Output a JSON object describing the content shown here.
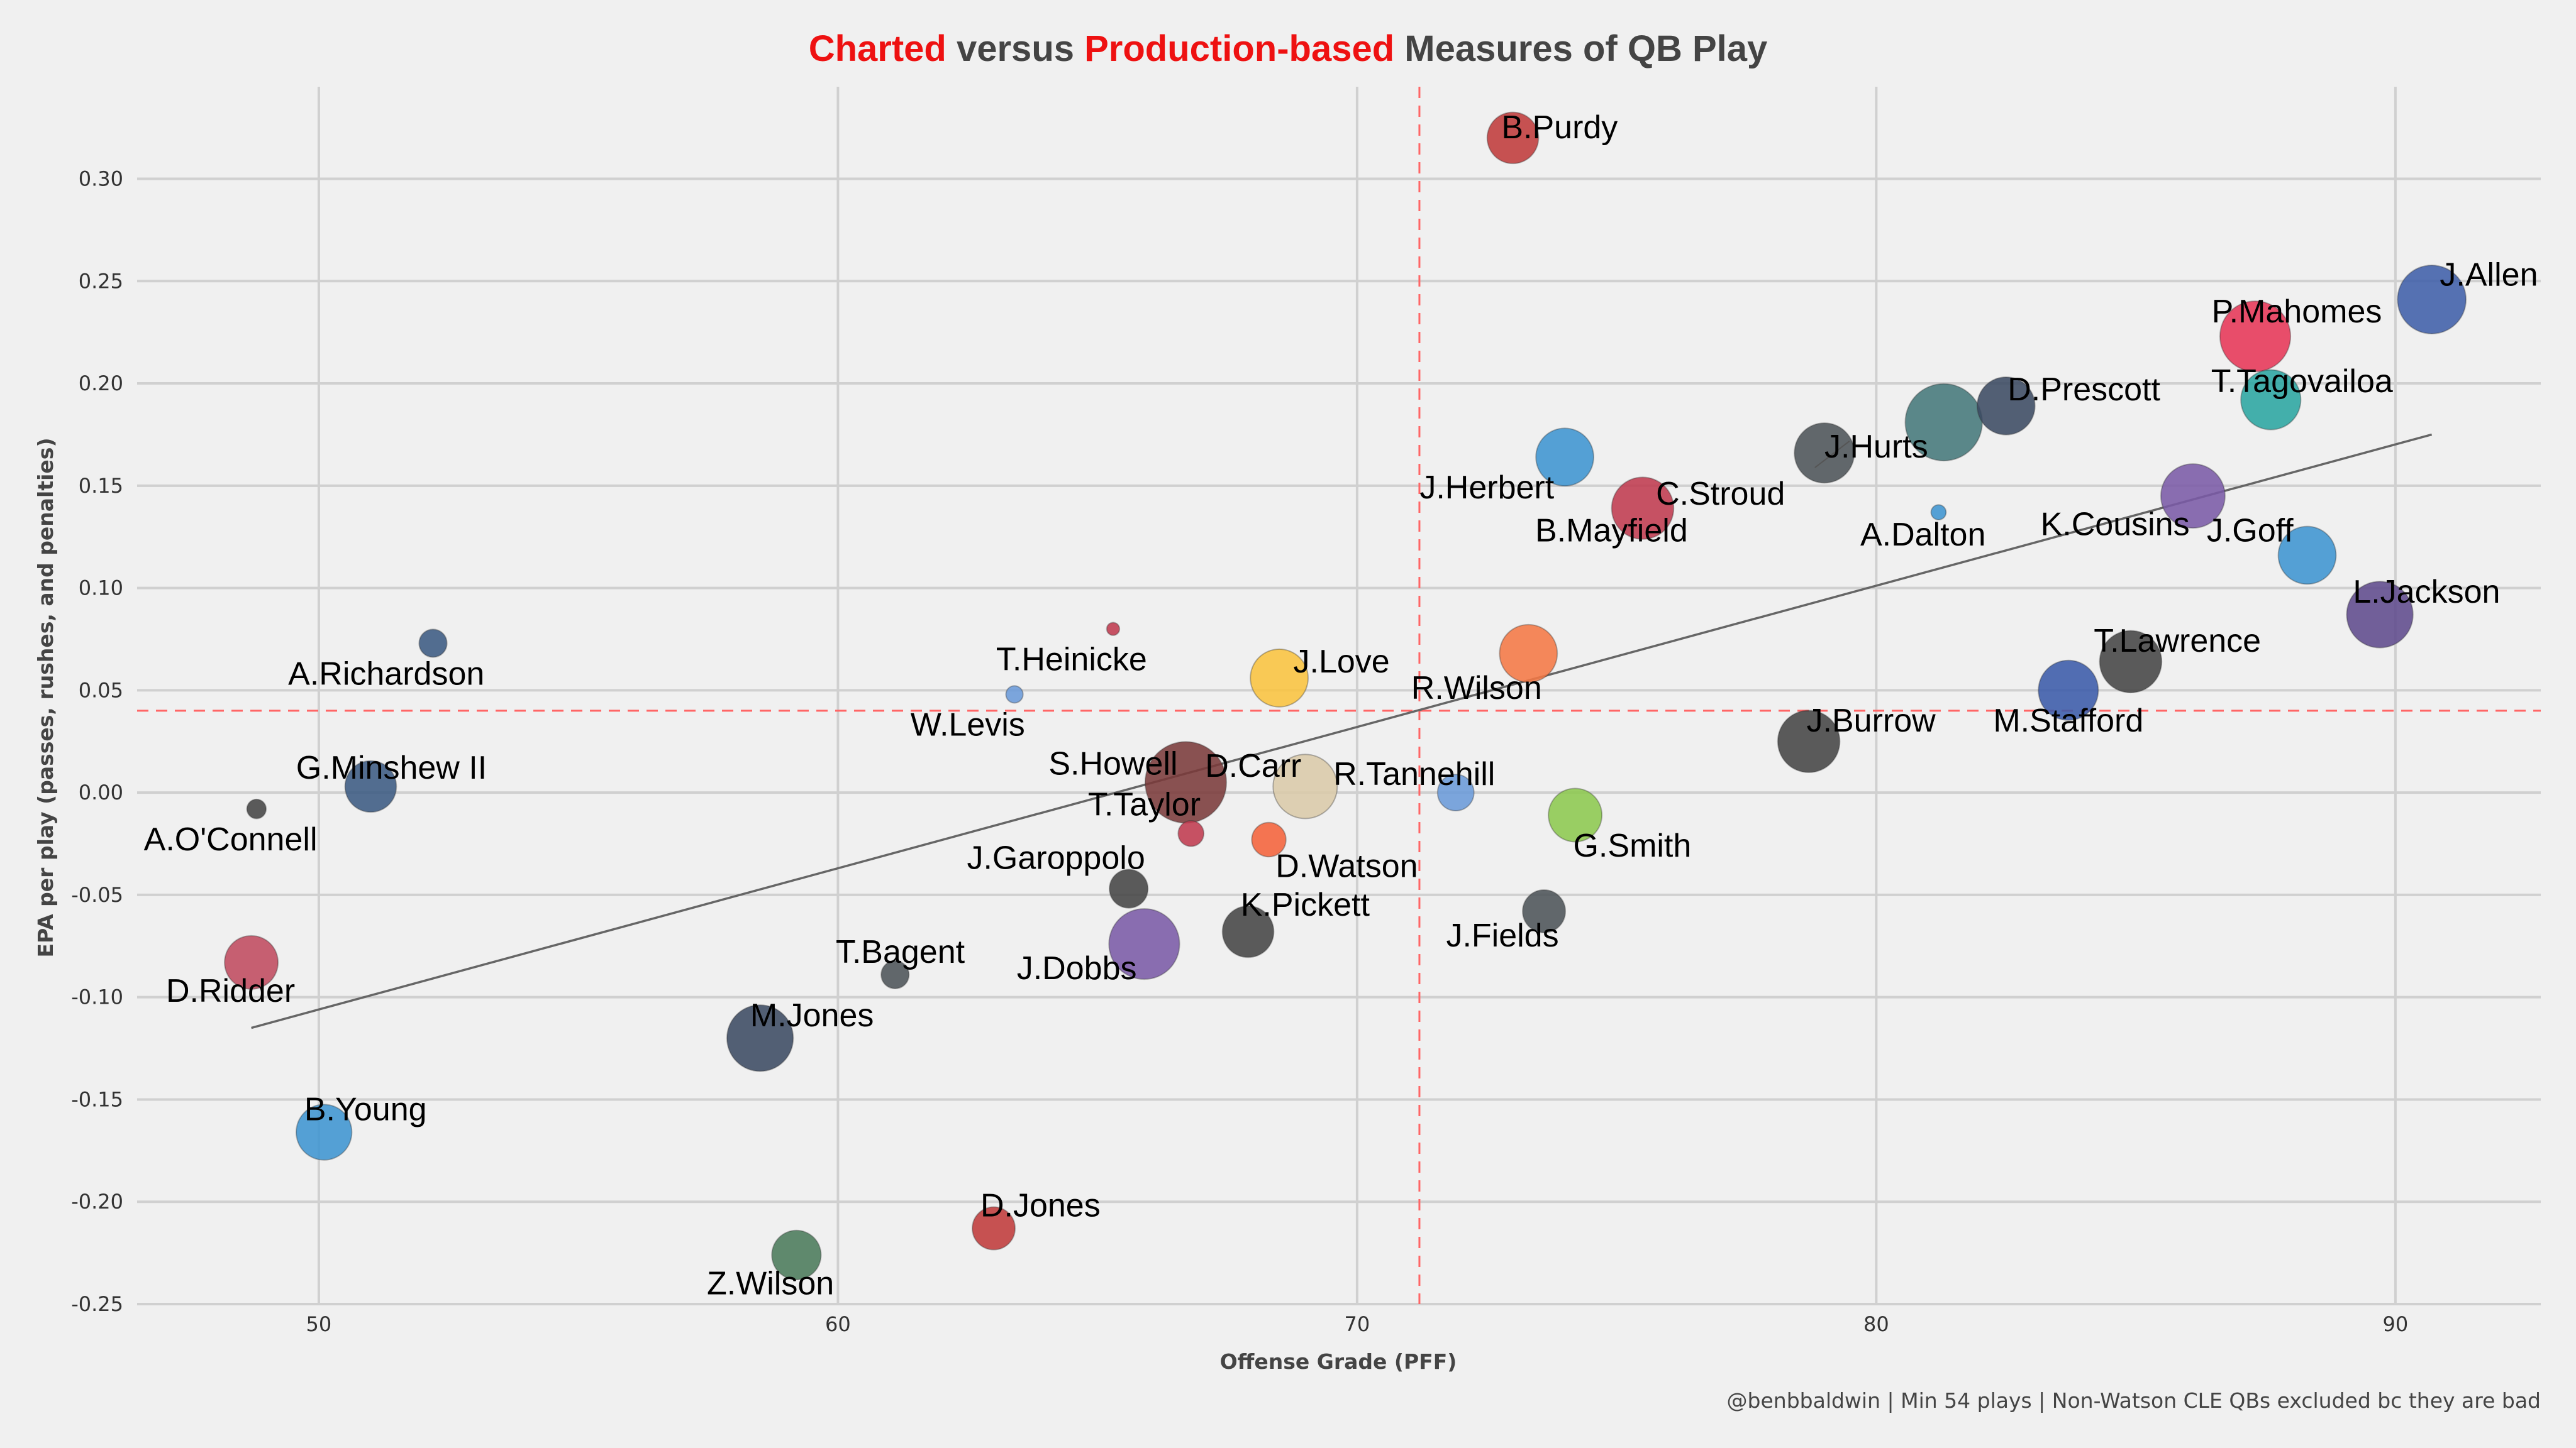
{
  "title": {
    "segments": [
      {
        "text": "Charted",
        "color": "#ee1111"
      },
      {
        "text": " versus ",
        "color": "#444444"
      },
      {
        "text": "Production-based",
        "color": "#ee1111"
      },
      {
        "text": " Measures of QB Play",
        "color": "#444444"
      }
    ]
  },
  "caption": "@benbbaldwin | Min 54 plays | Non-Watson CLE QBs excluded bc they are bad",
  "chart_data": {
    "type": "scatter",
    "title": "Charted versus Production-based Measures of QB Play",
    "xlabel": "Offense Grade (PFF)",
    "ylabel": "EPA per play (passes, rushes, and penalties)",
    "xlim": [
      46.5,
      92.8
    ],
    "ylim": [
      -0.25,
      0.345
    ],
    "xticks": [
      50,
      60,
      70,
      80,
      90
    ],
    "yticks": [
      -0.25,
      -0.2,
      -0.15,
      -0.1,
      -0.05,
      0.0,
      0.05,
      0.1,
      0.15,
      0.2,
      0.25,
      0.3
    ],
    "ytick_labels": [
      "-0.25",
      "-0.20",
      "-0.15",
      "-0.10",
      "-0.05",
      "0.00",
      "0.05",
      "0.10",
      "0.15",
      "0.20",
      "0.25",
      "0.30"
    ],
    "grid": true,
    "ref_lines": {
      "x": 71.2,
      "y": 0.04,
      "color": "#ff6666"
    },
    "trend_line": {
      "x": [
        48.7,
        90.7
      ],
      "y": [
        -0.115,
        0.175
      ],
      "color": "#666666"
    },
    "points": [
      {
        "name": "J.Allen",
        "x": 90.7,
        "y": 0.241,
        "size": 3.2,
        "color": "#3f5fa8",
        "lx": 91.8,
        "ly": 0.252
      },
      {
        "name": "P.Mahomes",
        "x": 87.3,
        "y": 0.223,
        "size": 3.3,
        "color": "#e63656",
        "lx": 88.1,
        "ly": 0.234
      },
      {
        "name": "T.Tagovailoa",
        "x": 87.6,
        "y": 0.192,
        "size": 2.8,
        "color": "#2aa5a0",
        "lx": 88.2,
        "ly": 0.2
      },
      {
        "name": "D.Prescott",
        "x": 82.5,
        "y": 0.189,
        "size": 2.7,
        "color": "#3b4a62",
        "lx": 84.0,
        "ly": 0.196
      },
      {
        "name": "C.Stroud",
        "x": 81.3,
        "y": 0.181,
        "size": 3.6,
        "color": "#44777a",
        "lx": 77.0,
        "ly": 0.145
      },
      {
        "name": "J.Hurts",
        "x": 79.0,
        "y": 0.166,
        "size": 2.8,
        "color": "#4c5358",
        "lx": 80.0,
        "ly": 0.168
      },
      {
        "name": "J.Herbert",
        "x": 74.0,
        "y": 0.164,
        "size": 2.7,
        "color": "#3d94d0",
        "lx": 72.5,
        "ly": 0.148
      },
      {
        "name": "B.Mayfield",
        "x": 75.5,
        "y": 0.139,
        "size": 2.9,
        "color": "#bf3a4e",
        "lx": 74.9,
        "ly": 0.127
      },
      {
        "name": "A.Dalton",
        "x": 81.2,
        "y": 0.137,
        "size": 0.7,
        "color": "#3d94d0",
        "lx": 80.9,
        "ly": 0.125
      },
      {
        "name": "K.Cousins",
        "x": 86.1,
        "y": 0.145,
        "size": 3.0,
        "color": "#7a5aa6",
        "lx": 84.6,
        "ly": 0.13
      },
      {
        "name": "J.Goff",
        "x": 88.3,
        "y": 0.116,
        "size": 2.7,
        "color": "#3d94d0",
        "lx": 87.2,
        "ly": 0.127
      },
      {
        "name": "L.Jackson",
        "x": 89.7,
        "y": 0.087,
        "size": 3.1,
        "color": "#5e4a8c",
        "lx": 90.6,
        "ly": 0.097
      },
      {
        "name": "T.Lawrence",
        "x": 84.9,
        "y": 0.064,
        "size": 2.9,
        "color": "#444444",
        "lx": 85.8,
        "ly": 0.073
      },
      {
        "name": "M.Stafford",
        "x": 83.7,
        "y": 0.05,
        "size": 2.8,
        "color": "#3a5aa8",
        "lx": 83.7,
        "ly": 0.034
      },
      {
        "name": "J.Burrow",
        "x": 78.7,
        "y": 0.025,
        "size": 2.9,
        "color": "#444444",
        "lx": 79.9,
        "ly": 0.034
      },
      {
        "name": "B.Purdy",
        "x": 73.0,
        "y": 0.32,
        "size": 2.4,
        "color": "#bf3a3a",
        "lx": 73.9,
        "ly": 0.324
      },
      {
        "name": "R.Wilson",
        "x": 73.3,
        "y": 0.068,
        "size": 2.7,
        "color": "#f47744",
        "lx": 72.3,
        "ly": 0.05
      },
      {
        "name": "J.Love",
        "x": 68.5,
        "y": 0.056,
        "size": 2.7,
        "color": "#f9c33f",
        "lx": 69.7,
        "ly": 0.063
      },
      {
        "name": "T.Heinicke",
        "x": 65.3,
        "y": 0.08,
        "size": 0.6,
        "color": "#bf3a4e",
        "lx": 64.5,
        "ly": 0.064
      },
      {
        "name": "W.Levis",
        "x": 63.4,
        "y": 0.048,
        "size": 0.8,
        "color": "#6a9ad8",
        "lx": 62.5,
        "ly": 0.032
      },
      {
        "name": "A.Richardson",
        "x": 52.2,
        "y": 0.073,
        "size": 1.3,
        "color": "#3b5a82",
        "lx": 51.3,
        "ly": 0.057
      },
      {
        "name": "G.Minshew II",
        "x": 51.0,
        "y": 0.003,
        "size": 2.4,
        "color": "#3b5a82",
        "lx": 51.4,
        "ly": 0.011
      },
      {
        "name": "A.O'Connell",
        "x": 48.8,
        "y": -0.008,
        "size": 0.9,
        "color": "#444444",
        "lx": 48.3,
        "ly": -0.024
      },
      {
        "name": "D.Ridder",
        "x": 48.7,
        "y": -0.083,
        "size": 2.5,
        "color": "#bf4a5e",
        "lx": 48.3,
        "ly": -0.098
      },
      {
        "name": "S.Howell",
        "x": 66.7,
        "y": 0.005,
        "size": 3.8,
        "color": "#7a3a3a",
        "lx": 65.3,
        "ly": 0.013
      },
      {
        "name": "D.Carr",
        "x": 69.0,
        "y": 0.003,
        "size": 3.0,
        "color": "#d9c9a8",
        "lx": 68.0,
        "ly": 0.012
      },
      {
        "name": "R.Tannehill",
        "x": 71.9,
        "y": 0.0,
        "size": 1.7,
        "color": "#6a9ad8",
        "lx": 71.1,
        "ly": 0.008
      },
      {
        "name": "G.Smith",
        "x": 74.2,
        "y": -0.011,
        "size": 2.5,
        "color": "#8cc84f",
        "lx": 75.3,
        "ly": -0.027
      },
      {
        "name": "T.Taylor",
        "x": 66.8,
        "y": -0.02,
        "size": 1.2,
        "color": "#bf3a4e",
        "lx": 65.9,
        "ly": -0.007
      },
      {
        "name": "D.Watson",
        "x": 68.3,
        "y": -0.023,
        "size": 1.6,
        "color": "#f4623a",
        "lx": 69.8,
        "ly": -0.037
      },
      {
        "name": "J.Garoppolo",
        "x": 65.6,
        "y": -0.047,
        "size": 1.8,
        "color": "#444444",
        "lx": 64.2,
        "ly": -0.033
      },
      {
        "name": "K.Pickett",
        "x": 67.9,
        "y": -0.068,
        "size": 2.4,
        "color": "#444444",
        "lx": 69.0,
        "ly": -0.056
      },
      {
        "name": "J.Fields",
        "x": 73.6,
        "y": -0.058,
        "size": 2.0,
        "color": "#4c5358",
        "lx": 72.8,
        "ly": -0.071
      },
      {
        "name": "J.Dobbs",
        "x": 65.9,
        "y": -0.074,
        "size": 3.3,
        "color": "#7a5aa6",
        "lx": 64.6,
        "ly": -0.087
      },
      {
        "name": "T.Bagent",
        "x": 61.1,
        "y": -0.089,
        "size": 1.3,
        "color": "#4c5358",
        "lx": 61.2,
        "ly": -0.079
      },
      {
        "name": "M.Jones",
        "x": 58.5,
        "y": -0.12,
        "size": 3.1,
        "color": "#3b4a62",
        "lx": 59.5,
        "ly": -0.11
      },
      {
        "name": "B.Young",
        "x": 50.1,
        "y": -0.166,
        "size": 2.6,
        "color": "#3d94d0",
        "lx": 50.9,
        "ly": -0.156
      },
      {
        "name": "D.Jones",
        "x": 63.0,
        "y": -0.213,
        "size": 2.0,
        "color": "#bf3a3a",
        "lx": 63.9,
        "ly": -0.203
      },
      {
        "name": "Z.Wilson",
        "x": 59.2,
        "y": -0.226,
        "size": 2.3,
        "color": "#4a7a5a",
        "lx": 58.7,
        "ly": -0.241
      }
    ]
  }
}
